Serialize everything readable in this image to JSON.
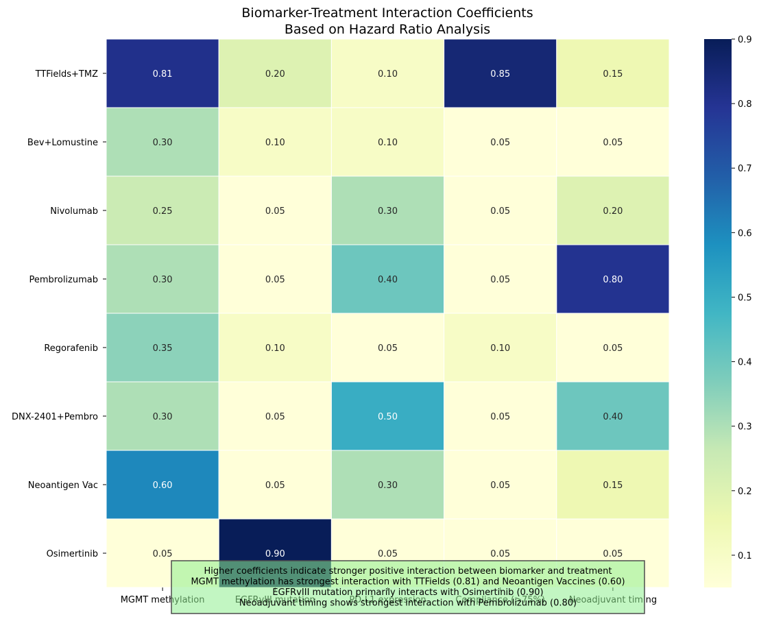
{
  "chart_data": {
    "type": "heatmap",
    "title": "Biomarker-Treatment Interaction Coefficients\nBased on Hazard Ratio Analysis",
    "title_lines": [
      "Biomarker-Treatment Interaction Coefficients",
      "Based on Hazard Ratio Analysis"
    ],
    "columns": [
      "MGMT methylation",
      "EGFRvIII mutation",
      "PD-L1 expression",
      "Compliance (>75%)",
      "Neoadjuvant timing"
    ],
    "rows": [
      "TTFields+TMZ",
      "Bev+Lomustine",
      "Nivolumab",
      "Pembrolizumab",
      "Regorafenib",
      "DNX-2401+Pembro",
      "Neoantigen Vac",
      "Osimertinib"
    ],
    "values": [
      [
        0.81,
        0.2,
        0.1,
        0.85,
        0.15
      ],
      [
        0.3,
        0.1,
        0.1,
        0.05,
        0.05
      ],
      [
        0.25,
        0.05,
        0.3,
        0.05,
        0.2
      ],
      [
        0.3,
        0.05,
        0.4,
        0.05,
        0.8
      ],
      [
        0.35,
        0.1,
        0.05,
        0.1,
        0.05
      ],
      [
        0.3,
        0.05,
        0.5,
        0.05,
        0.4
      ],
      [
        0.6,
        0.05,
        0.3,
        0.05,
        0.15
      ],
      [
        0.05,
        0.9,
        0.05,
        0.05,
        0.05
      ]
    ],
    "value_format": "2 decimals",
    "colormap": "YlGnBu",
    "color_range": [
      0.05,
      0.9
    ],
    "colorbar_ticks": [
      "0.1",
      "0.2",
      "0.3",
      "0.4",
      "0.5",
      "0.6",
      "0.7",
      "0.8",
      "0.9"
    ],
    "annotation": [
      "Higher coefficients indicate stronger positive interaction between biomarker and treatment",
      "MGMT methylation has strongest interaction with TTFields (0.81) and Neoantigen Vaccines (0.60)",
      "EGFRvIII mutation primarily interacts with Osimertinib (0.90)",
      "Neoadjuvant timing shows strongest interaction with Pembrolizumab (0.80)"
    ],
    "annotation_box_color": "#90ee90"
  }
}
